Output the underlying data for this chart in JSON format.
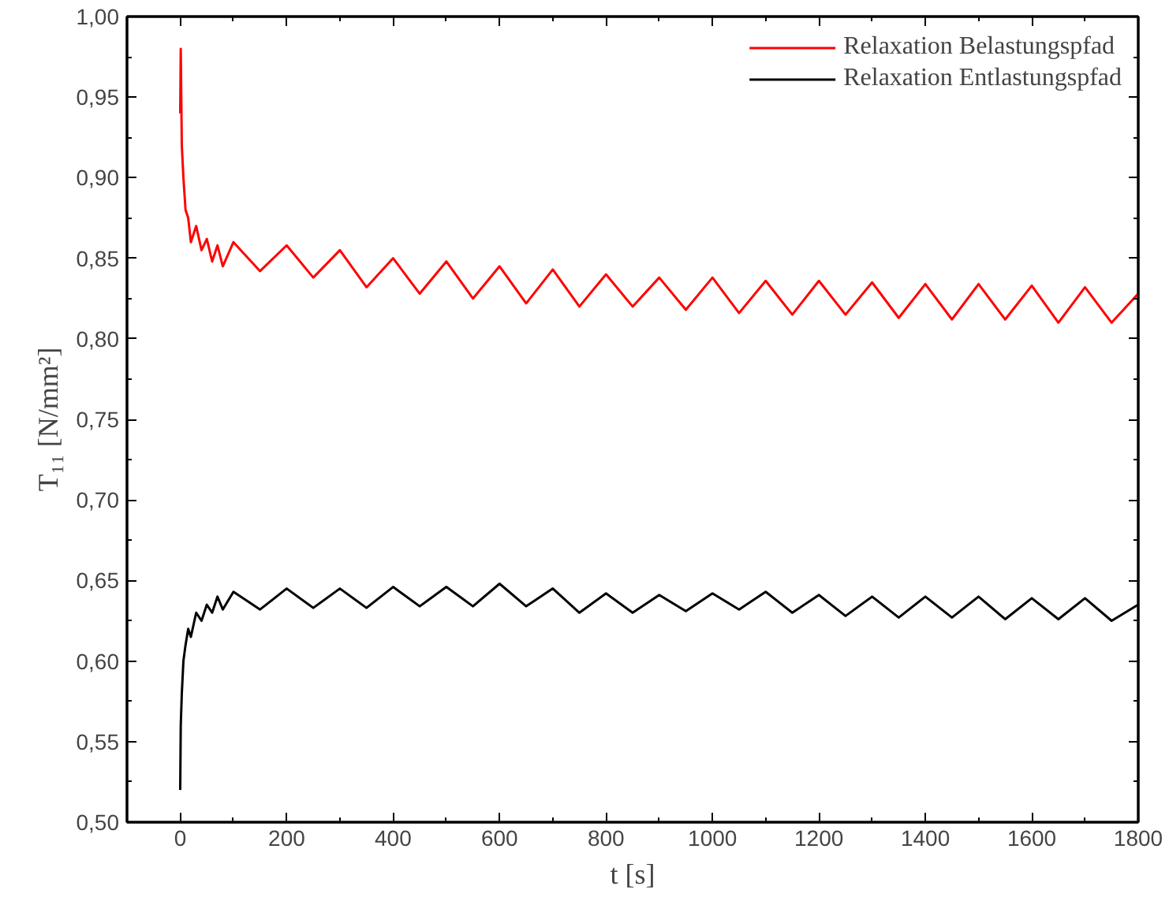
{
  "chart_data": {
    "type": "line",
    "xlabel": "t [s]",
    "ylabel": "T₁₁ [N/mm²]",
    "xlim": [
      -100,
      1800
    ],
    "xticks": [
      0,
      200,
      400,
      600,
      800,
      1000,
      1200,
      1400,
      1600,
      1800
    ],
    "ylim": [
      0.5,
      1.0
    ],
    "yticks": [
      {
        "value": 0.5,
        "label": "0,50"
      },
      {
        "value": 0.55,
        "label": "0,55"
      },
      {
        "value": 0.6,
        "label": "0,60"
      },
      {
        "value": 0.65,
        "label": "0,65"
      },
      {
        "value": 0.7,
        "label": "0,70"
      },
      {
        "value": 0.75,
        "label": "0,75"
      },
      {
        "value": 0.8,
        "label": "0,80"
      },
      {
        "value": 0.85,
        "label": "0,85"
      },
      {
        "value": 0.9,
        "label": "0,90"
      },
      {
        "value": 0.95,
        "label": "0,95"
      },
      {
        "value": 1.0,
        "label": "1,00"
      }
    ],
    "grid": false,
    "legend": "top right",
    "marker": "none",
    "line_style": "solid",
    "series": [
      {
        "name": "Relaxation Belastungspfad",
        "color": "#ff0000",
        "x": [
          0,
          1,
          3,
          6,
          10,
          15,
          20,
          30,
          40,
          50,
          60,
          70,
          80,
          100,
          150,
          200,
          250,
          300,
          350,
          400,
          450,
          500,
          550,
          600,
          650,
          700,
          750,
          800,
          850,
          900,
          950,
          1000,
          1050,
          1100,
          1150,
          1200,
          1250,
          1300,
          1350,
          1400,
          1450,
          1500,
          1550,
          1600,
          1650,
          1700,
          1750,
          1800
        ],
        "values": [
          0.94,
          0.98,
          0.92,
          0.9,
          0.88,
          0.875,
          0.86,
          0.87,
          0.855,
          0.862,
          0.848,
          0.858,
          0.845,
          0.86,
          0.842,
          0.858,
          0.838,
          0.855,
          0.832,
          0.85,
          0.828,
          0.848,
          0.825,
          0.845,
          0.822,
          0.843,
          0.82,
          0.84,
          0.82,
          0.838,
          0.818,
          0.838,
          0.816,
          0.836,
          0.815,
          0.836,
          0.815,
          0.835,
          0.813,
          0.834,
          0.812,
          0.834,
          0.812,
          0.833,
          0.81,
          0.832,
          0.81,
          0.828
        ]
      },
      {
        "name": "Relaxation Entlastungspfad",
        "color": "#000000",
        "x": [
          0,
          1,
          3,
          6,
          10,
          15,
          20,
          30,
          40,
          50,
          60,
          70,
          80,
          100,
          150,
          200,
          250,
          300,
          350,
          400,
          450,
          500,
          550,
          600,
          650,
          700,
          750,
          800,
          850,
          900,
          950,
          1000,
          1050,
          1100,
          1150,
          1200,
          1250,
          1300,
          1350,
          1400,
          1450,
          1500,
          1550,
          1600,
          1650,
          1700,
          1750,
          1800
        ],
        "values": [
          0.52,
          0.56,
          0.58,
          0.6,
          0.61,
          0.62,
          0.615,
          0.63,
          0.625,
          0.635,
          0.63,
          0.64,
          0.632,
          0.643,
          0.632,
          0.645,
          0.633,
          0.645,
          0.633,
          0.646,
          0.634,
          0.646,
          0.634,
          0.648,
          0.634,
          0.645,
          0.63,
          0.642,
          0.63,
          0.641,
          0.631,
          0.642,
          0.632,
          0.643,
          0.63,
          0.641,
          0.628,
          0.64,
          0.627,
          0.64,
          0.627,
          0.64,
          0.626,
          0.639,
          0.626,
          0.639,
          0.625,
          0.635
        ]
      }
    ]
  }
}
